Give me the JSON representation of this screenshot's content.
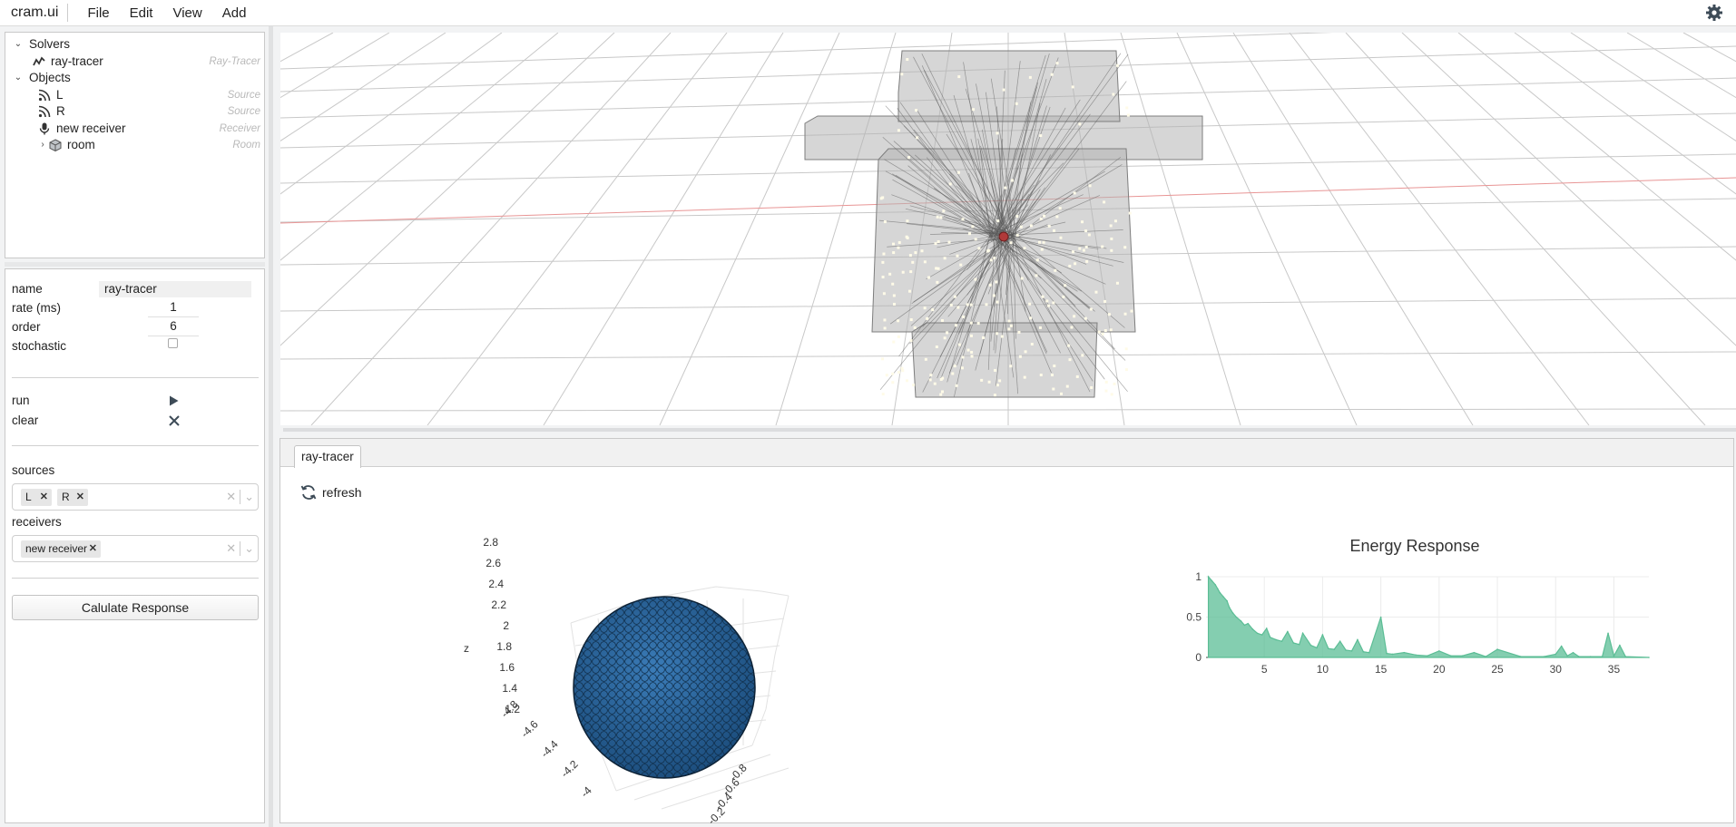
{
  "app": {
    "title": "cram.ui"
  },
  "menu": [
    "File",
    "Edit",
    "View",
    "Add"
  ],
  "tree": {
    "solvers_label": "Solvers",
    "objects_label": "Objects",
    "items": [
      {
        "label": "ray-tracer",
        "kind": "Ray-Tracer",
        "icon": "ray-tracer-icon"
      },
      {
        "label": "L",
        "kind": "Source",
        "icon": "source-icon"
      },
      {
        "label": "R",
        "kind": "Source",
        "icon": "source-icon"
      },
      {
        "label": "new receiver",
        "kind": "Receiver",
        "icon": "microphone-icon"
      },
      {
        "label": "room",
        "kind": "Room",
        "icon": "cube-icon"
      }
    ]
  },
  "props": {
    "name_label": "name",
    "name_value": "ray-tracer",
    "rate_label": "rate (ms)",
    "rate_value": "1",
    "order_label": "order",
    "order_value": "6",
    "stochastic_label": "stochastic",
    "run_label": "run",
    "clear_label": "clear",
    "sources_label": "sources",
    "sources": [
      "L",
      "R"
    ],
    "receivers_label": "receivers",
    "receivers": [
      "new receiver"
    ],
    "calc_button": "Calulate Response"
  },
  "bottom": {
    "tab": "ray-tracer",
    "refresh_label": "refresh"
  },
  "sphere_plot": {
    "z_label": "z",
    "z_ticks": [
      "2.8",
      "2.6",
      "2.4",
      "2.2",
      "2",
      "1.8",
      "1.6",
      "1.4",
      "1.2"
    ],
    "x_ticks": [
      "-4.8",
      "-4.6",
      "-4.4",
      "-4.2",
      "-4"
    ],
    "y_ticks": [
      "-0.8",
      "-0.6",
      "-0.4",
      "-0.2",
      "0"
    ],
    "sphere_color": "#2a6aa4"
  },
  "chart_data": {
    "type": "line",
    "title": "Energy Response",
    "xlim": [
      0,
      38
    ],
    "ylim": [
      0,
      1
    ],
    "x_ticks": [
      5,
      10,
      15,
      20,
      25,
      30,
      35
    ],
    "y_ticks": [
      0,
      0.5,
      1
    ],
    "x_tick_labels": [
      "5",
      "10",
      "15",
      "20",
      "25",
      "30",
      "35"
    ],
    "y_tick_labels": [
      "0",
      "0.5",
      "1"
    ],
    "color": "#5bbd95",
    "x": [
      0.2,
      0.5,
      0.8,
      1.0,
      1.2,
      1.5,
      1.8,
      2.0,
      2.3,
      2.6,
      3.0,
      3.3,
      3.6,
      4.0,
      4.4,
      4.8,
      5.2,
      5.5,
      6.0,
      6.5,
      7.0,
      7.5,
      8.0,
      8.3,
      9.0,
      9.5,
      10.0,
      10.5,
      11.0,
      11.5,
      12.0,
      12.5,
      13.0,
      13.5,
      14.0,
      15.0,
      15.5,
      16.0,
      17.0,
      18.0,
      19.0,
      20.0,
      21.0,
      22.0,
      23.0,
      24.0,
      25.0,
      27.0,
      29.0,
      30.0,
      30.5,
      31.0,
      31.5,
      32.0,
      33.0,
      34.0,
      34.5,
      35.0,
      35.5,
      36.0,
      38.0
    ],
    "y": [
      1.0,
      0.95,
      0.9,
      0.85,
      0.8,
      0.75,
      0.7,
      0.62,
      0.55,
      0.5,
      0.45,
      0.4,
      0.42,
      0.35,
      0.3,
      0.28,
      0.36,
      0.25,
      0.22,
      0.2,
      0.32,
      0.18,
      0.16,
      0.3,
      0.15,
      0.12,
      0.28,
      0.11,
      0.1,
      0.2,
      0.09,
      0.08,
      0.22,
      0.07,
      0.06,
      0.5,
      0.05,
      0.04,
      0.06,
      0.03,
      0.02,
      0.08,
      0.02,
      0.02,
      0.06,
      0.01,
      0.1,
      0.01,
      0.01,
      0.04,
      0.14,
      0.02,
      0.06,
      0.01,
      0.01,
      0.01,
      0.3,
      0.02,
      0.15,
      0.01,
      0.0
    ]
  }
}
